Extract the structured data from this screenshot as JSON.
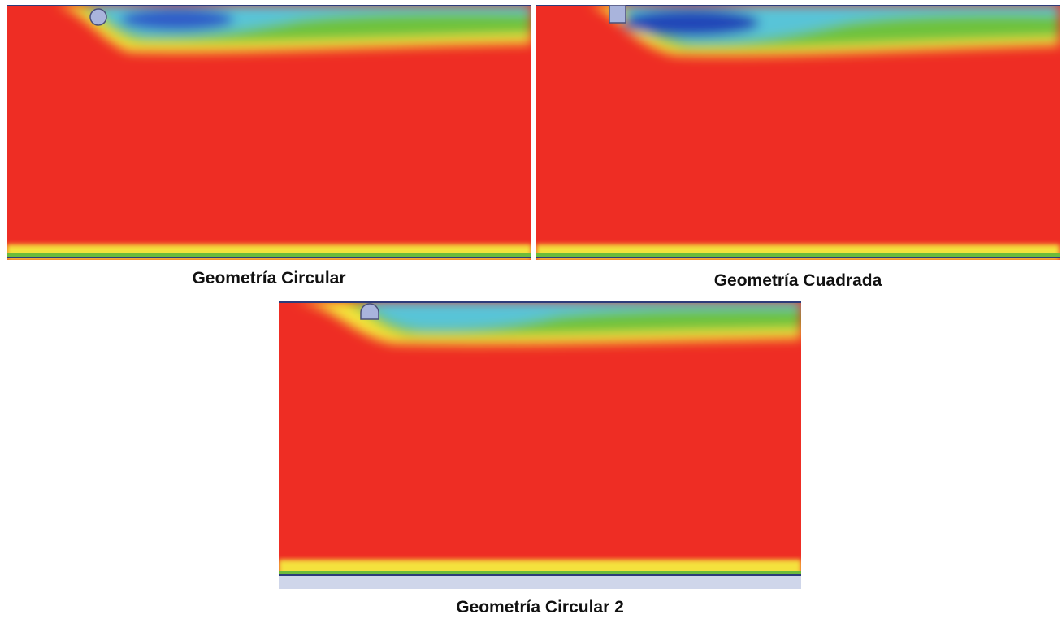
{
  "colors": {
    "field_background": "#ee2d24",
    "deep_blue": "#2a52c4",
    "cyan": "#56c2da",
    "green": "#63c03e",
    "yellow": "#f5e93a",
    "wall_line": "#2c3b7a",
    "obstacle_fill": "#a9b4dc",
    "obstacle_stroke": "#4a4f7a",
    "floor_band": "#cfd6ea"
  },
  "panels": [
    {
      "id": "circular",
      "caption": "Geometría Circular",
      "obstacle": "circle"
    },
    {
      "id": "cuadrada",
      "caption": "Geometría Cuadrada",
      "obstacle": "square"
    },
    {
      "id": "circular-2",
      "caption": "Geometría Circular 2",
      "obstacle": "dome"
    }
  ]
}
